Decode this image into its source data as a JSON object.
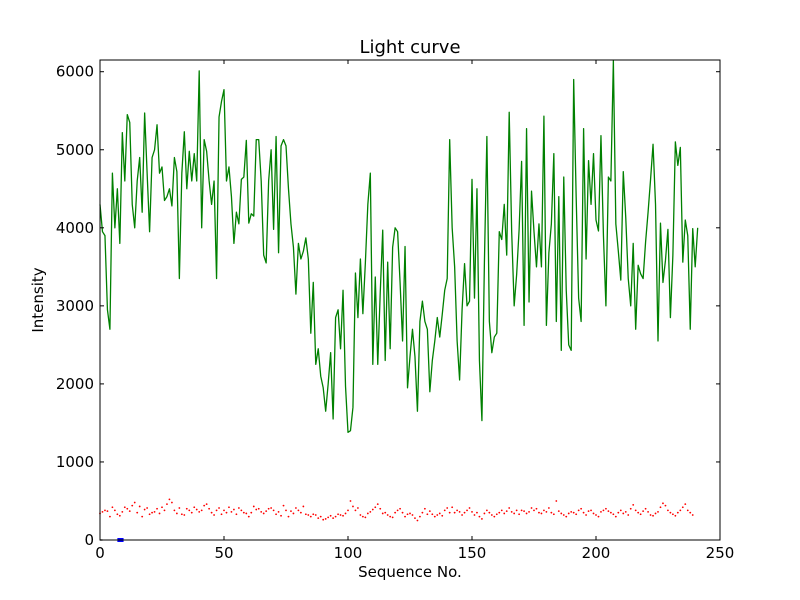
{
  "chart_data": {
    "type": "line",
    "title": "Light curve",
    "xlabel": "Sequence No.",
    "ylabel": "Intensity",
    "xlim": [
      0,
      250
    ],
    "ylim": [
      0,
      6150
    ],
    "xticks": [
      0,
      50,
      100,
      150,
      200,
      250
    ],
    "yticks": [
      0,
      1000,
      2000,
      3000,
      4000,
      5000,
      6000
    ],
    "xtick_labels": [
      "0",
      "50",
      "100",
      "150",
      "200",
      "250"
    ],
    "ytick_labels": [
      "0",
      "1000",
      "2000",
      "3000",
      "4000",
      "5000",
      "6000"
    ],
    "grid": false,
    "series": [
      {
        "style": "solid-line",
        "color": "#008000",
        "x_start": 0,
        "x_step": 1,
        "values": [
          4300,
          3950,
          3900,
          2950,
          2700,
          4700,
          4000,
          4500,
          3800,
          5220,
          4600,
          5450,
          5350,
          4300,
          4000,
          4600,
          4900,
          4200,
          5470,
          4700,
          3950,
          4900,
          5000,
          5320,
          4700,
          4780,
          4350,
          4400,
          4500,
          4280,
          4900,
          4720,
          3350,
          4700,
          5230,
          4500,
          4980,
          4600,
          4950,
          4600,
          6010,
          4000,
          5130,
          4980,
          4600,
          4300,
          4600,
          3350,
          5420,
          5620,
          5770,
          4600,
          4780,
          4400,
          3800,
          4200,
          4050,
          4620,
          4650,
          5120,
          4060,
          4180,
          4150,
          5130,
          5130,
          4600,
          3650,
          3550,
          4600,
          5000,
          3980,
          5170,
          3680,
          5050,
          5130,
          5050,
          4500,
          4050,
          3750,
          3150,
          3800,
          3600,
          3700,
          3870,
          3600,
          2650,
          3300,
          2250,
          2450,
          2100,
          1950,
          1650,
          2000,
          2400,
          1550,
          2850,
          2950,
          2450,
          3200,
          1970,
          1380,
          1400,
          1700,
          3420,
          2850,
          3600,
          2900,
          3550,
          4300,
          4700,
          2250,
          3370,
          2250,
          3170,
          3970,
          2300,
          3560,
          2450,
          3750,
          4000,
          3950,
          3300,
          2550,
          3760,
          1950,
          2350,
          2700,
          2350,
          1650,
          2800,
          3060,
          2800,
          2700,
          1900,
          2300,
          2550,
          2850,
          2600,
          2890,
          3200,
          3350,
          5130,
          4000,
          3500,
          2550,
          2050,
          2950,
          3540,
          3000,
          3060,
          4620,
          3100,
          4500,
          2300,
          1530,
          3550,
          5170,
          2800,
          2400,
          2600,
          2650,
          3950,
          3850,
          4300,
          3650,
          5480,
          3950,
          3000,
          3400,
          3980,
          4850,
          2750,
          5270,
          3050,
          4470,
          3950,
          3500,
          4050,
          3500,
          5430,
          2750,
          3680,
          4050,
          4950,
          2800,
          4400,
          2430,
          4650,
          3200,
          2500,
          2430,
          5900,
          4400,
          3100,
          2800,
          5270,
          3600,
          4860,
          4300,
          4950,
          4100,
          3960,
          5180,
          3900,
          3000,
          4650,
          4600,
          6140,
          4050,
          3700,
          3330,
          4720,
          4130,
          3350,
          3000,
          3800,
          2700,
          3520,
          3410,
          3350,
          3820,
          4200,
          4620,
          5070,
          4300,
          2550,
          4060,
          3300,
          3580,
          3980,
          2850,
          3650,
          5100,
          4800,
          5030,
          3560,
          4100,
          3900,
          2700,
          3990,
          3500,
          4000
        ]
      },
      {
        "style": "dotted",
        "color": "#ff0000",
        "x_start": 0,
        "x_step": 1,
        "values": [
          340,
          360,
          380,
          370,
          300,
          420,
          380,
          330,
          310,
          360,
          420,
          400,
          370,
          440,
          480,
          350,
          430,
          300,
          390,
          410,
          330,
          350,
          360,
          400,
          340,
          420,
          380,
          460,
          520,
          480,
          380,
          340,
          410,
          330,
          320,
          400,
          380,
          350,
          420,
          390,
          360,
          380,
          440,
          460,
          400,
          350,
          320,
          380,
          410,
          330,
          380,
          350,
          420,
          360,
          390,
          330,
          410,
          380,
          350,
          340,
          300,
          350,
          430,
          390,
          400,
          360,
          340,
          370,
          400,
          410,
          380,
          330,
          360,
          310,
          440,
          380,
          300,
          370,
          340,
          410,
          380,
          350,
          430,
          330,
          320,
          300,
          330,
          320,
          280,
          300,
          260,
          270,
          290,
          310,
          280,
          300,
          330,
          320,
          310,
          340,
          380,
          500,
          430,
          380,
          410,
          320,
          300,
          290,
          340,
          360,
          390,
          420,
          460,
          400,
          340,
          350,
          320,
          300,
          290,
          350,
          380,
          400,
          350,
          300,
          330,
          340,
          320,
          280,
          250,
          300,
          350,
          400,
          330,
          370,
          330,
          300,
          320,
          340,
          310,
          380,
          410,
          350,
          420,
          350,
          380,
          360,
          320,
          350,
          380,
          410,
          360,
          320,
          350,
          300,
          270,
          340,
          380,
          350,
          320,
          300,
          330,
          350,
          380,
          340,
          370,
          410,
          360,
          340,
          380,
          330,
          380,
          370,
          340,
          360,
          410,
          380,
          400,
          350,
          340,
          380,
          360,
          410,
          350,
          330,
          500,
          370,
          340,
          320,
          300,
          340,
          360,
          350,
          330,
          380,
          400,
          350,
          320,
          370,
          380,
          340,
          320,
          300,
          360,
          380,
          400,
          370,
          350,
          330,
          300,
          350,
          380,
          340,
          360,
          320,
          400,
          450,
          380,
          350,
          330,
          370,
          400,
          360,
          320,
          310,
          340,
          360,
          420,
          470,
          440,
          380,
          350,
          330,
          310,
          350,
          380,
          420,
          460,
          380,
          350,
          320
        ]
      },
      {
        "style": "solid-line",
        "color": "#0000ff",
        "x_start": 7,
        "x_step": 0.5,
        "values": [
          0,
          0,
          0,
          0,
          0,
          0
        ]
      },
      {
        "style": "solid-line",
        "color": "#000000",
        "x_start": 0,
        "x_step": 1,
        "values": [
          0,
          0
        ]
      }
    ]
  }
}
